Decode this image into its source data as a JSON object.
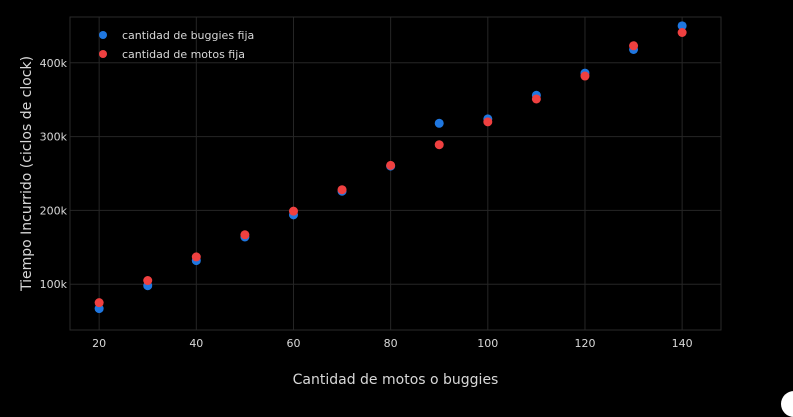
{
  "chart_data": {
    "type": "scatter",
    "title": "",
    "xlabel": "Cantidad de  motos o buggies",
    "ylabel": "Tiempo Incurrido (ciclos de clock)",
    "xlim": [
      14,
      148
    ],
    "ylim": [
      38000,
      462000
    ],
    "x_ticks": [
      20,
      40,
      60,
      80,
      100,
      120,
      140
    ],
    "x_tick_labels": [
      "20",
      "40",
      "60",
      "80",
      "100",
      "120",
      "140"
    ],
    "y_ticks": [
      100000,
      200000,
      300000,
      400000
    ],
    "y_tick_labels": [
      "100k",
      "200k",
      "300k",
      "400k"
    ],
    "grid": true,
    "legend_position": "top-left",
    "series": [
      {
        "name": "cantidad de buggies fija",
        "color": "#1f77e0",
        "x": [
          20,
          30,
          40,
          50,
          60,
          70,
          80,
          90,
          100,
          110,
          120,
          130,
          140
        ],
        "y": [
          67000,
          98000,
          132000,
          164000,
          194000,
          226000,
          260000,
          318000,
          324000,
          356000,
          386000,
          418000,
          450000
        ]
      },
      {
        "name": "cantidad de motos fija",
        "color": "#ef4040",
        "x": [
          20,
          30,
          40,
          50,
          60,
          70,
          80,
          90,
          100,
          110,
          120,
          130,
          140
        ],
        "y": [
          75000,
          105000,
          137000,
          167000,
          199000,
          228000,
          261000,
          289000,
          320000,
          351000,
          382000,
          423000,
          441000
        ]
      }
    ]
  }
}
